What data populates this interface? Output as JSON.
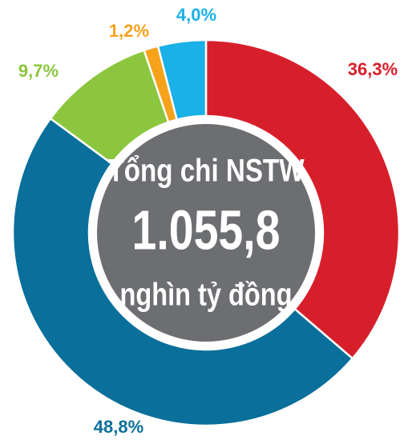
{
  "chart_data": {
    "type": "donut",
    "values": [
      36.3,
      48.8,
      9.7,
      1.2,
      4.0
    ],
    "value_labels": [
      "36,3%",
      "48,8%",
      "9,7%",
      "1,2%",
      "4,0%"
    ],
    "colors": [
      "#d71f2b",
      "#0a6f9a",
      "#8cc63f",
      "#f7a21b",
      "#1ab0e8"
    ],
    "center_text": [
      "Tổng chi NSTW",
      "1.055,8",
      "nghìn tỷ đồng"
    ],
    "center_color": "#6d6e71"
  }
}
